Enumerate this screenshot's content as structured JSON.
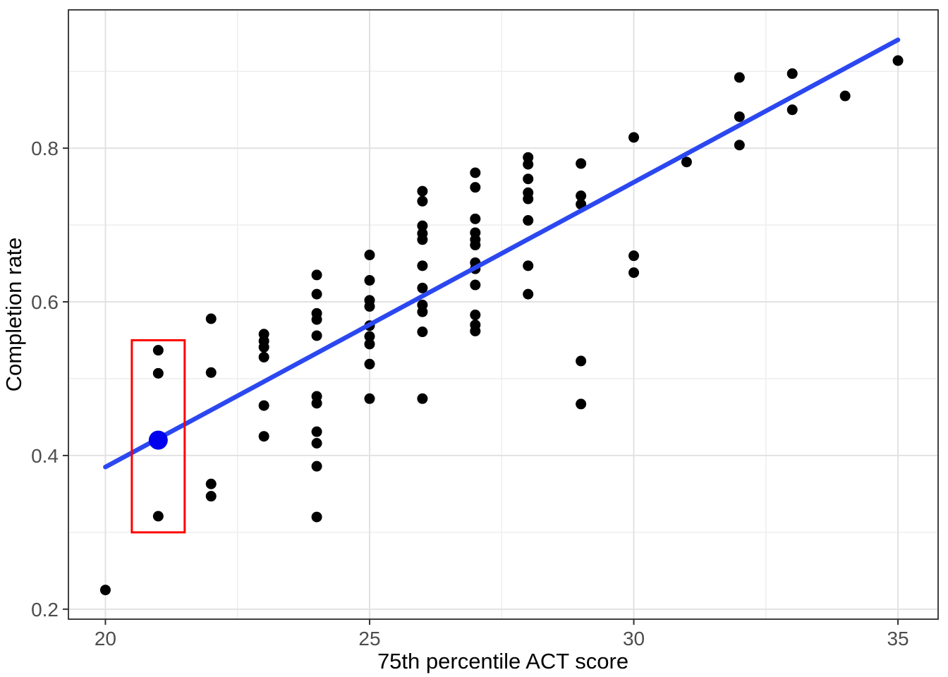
{
  "chart_data": {
    "type": "scatter",
    "title": "",
    "xlabel": "75th percentile ACT score",
    "ylabel": "Completion rate",
    "xlim": [
      19.3,
      35.76
    ],
    "ylim": [
      0.187,
      0.98
    ],
    "grid": "major+minor",
    "legend": "none",
    "x_ticks": [
      20,
      25,
      30,
      35
    ],
    "x_tick_labels": [
      "20",
      "25",
      "30",
      "35"
    ],
    "x_minor_ticks": [
      22.5,
      27.5,
      32.5
    ],
    "y_ticks": [
      0.2,
      0.4,
      0.6,
      0.8
    ],
    "y_tick_labels": [
      "0.2",
      "0.4",
      "0.6",
      "0.8"
    ],
    "y_minor_ticks": [
      0.3,
      0.5,
      0.7,
      0.9
    ],
    "points": [
      [
        20,
        0.225
      ],
      [
        21,
        0.537
      ],
      [
        21,
        0.507
      ],
      [
        21,
        0.321
      ],
      [
        22,
        0.578
      ],
      [
        22,
        0.508
      ],
      [
        22,
        0.363
      ],
      [
        22,
        0.347
      ],
      [
        23,
        0.558
      ],
      [
        23,
        0.549
      ],
      [
        23,
        0.541
      ],
      [
        23,
        0.528
      ],
      [
        23,
        0.465
      ],
      [
        23,
        0.425
      ],
      [
        24,
        0.635
      ],
      [
        24,
        0.61
      ],
      [
        24,
        0.585
      ],
      [
        24,
        0.577
      ],
      [
        24,
        0.556
      ],
      [
        24,
        0.477
      ],
      [
        24,
        0.468
      ],
      [
        24,
        0.431
      ],
      [
        24,
        0.416
      ],
      [
        24,
        0.386
      ],
      [
        24,
        0.32
      ],
      [
        25,
        0.661
      ],
      [
        25,
        0.628
      ],
      [
        25,
        0.602
      ],
      [
        25,
        0.594
      ],
      [
        25,
        0.569
      ],
      [
        25,
        0.555
      ],
      [
        25,
        0.545
      ],
      [
        25,
        0.519
      ],
      [
        25,
        0.474
      ],
      [
        26,
        0.744
      ],
      [
        26,
        0.731
      ],
      [
        26,
        0.699
      ],
      [
        26,
        0.689
      ],
      [
        26,
        0.681
      ],
      [
        26,
        0.647
      ],
      [
        26,
        0.618
      ],
      [
        26,
        0.596
      ],
      [
        26,
        0.587
      ],
      [
        26,
        0.561
      ],
      [
        26,
        0.474
      ],
      [
        27,
        0.768
      ],
      [
        27,
        0.749
      ],
      [
        27,
        0.708
      ],
      [
        27,
        0.69
      ],
      [
        27,
        0.681
      ],
      [
        27,
        0.674
      ],
      [
        27,
        0.651
      ],
      [
        27,
        0.643
      ],
      [
        27,
        0.622
      ],
      [
        27,
        0.583
      ],
      [
        27,
        0.57
      ],
      [
        27,
        0.562
      ],
      [
        28,
        0.788
      ],
      [
        28,
        0.779
      ],
      [
        28,
        0.76
      ],
      [
        28,
        0.742
      ],
      [
        28,
        0.734
      ],
      [
        28,
        0.706
      ],
      [
        28,
        0.647
      ],
      [
        28,
        0.61
      ],
      [
        29,
        0.78
      ],
      [
        29,
        0.738
      ],
      [
        29,
        0.727
      ],
      [
        29,
        0.523
      ],
      [
        29,
        0.467
      ],
      [
        30,
        0.814
      ],
      [
        30,
        0.66
      ],
      [
        30,
        0.638
      ],
      [
        31,
        0.782
      ],
      [
        32,
        0.892
      ],
      [
        32,
        0.841
      ],
      [
        32,
        0.804
      ],
      [
        33,
        0.897
      ],
      [
        33,
        0.85
      ],
      [
        34,
        0.868
      ],
      [
        35,
        0.914
      ]
    ],
    "highlight_point": {
      "x": 21,
      "y": 0.42
    },
    "regression_line": {
      "x1": 20,
      "y1": 0.385,
      "x2": 35,
      "y2": 0.941
    },
    "annotation_box": {
      "x1": 20.5,
      "x2": 21.5,
      "y1": 0.3,
      "y2": 0.55
    },
    "colors": {
      "point": "#000000",
      "regression_line": "#2b48f0",
      "highlight_point": "#0000ee",
      "annotation_box": "#ff0000",
      "major_grid": "#e2e2e2",
      "minor_grid": "#efefef",
      "panel_border": "#2b2b2b",
      "tick_mark": "#333333",
      "tick_text": "#4d4d4d",
      "panel_background": "#ffffff"
    }
  }
}
